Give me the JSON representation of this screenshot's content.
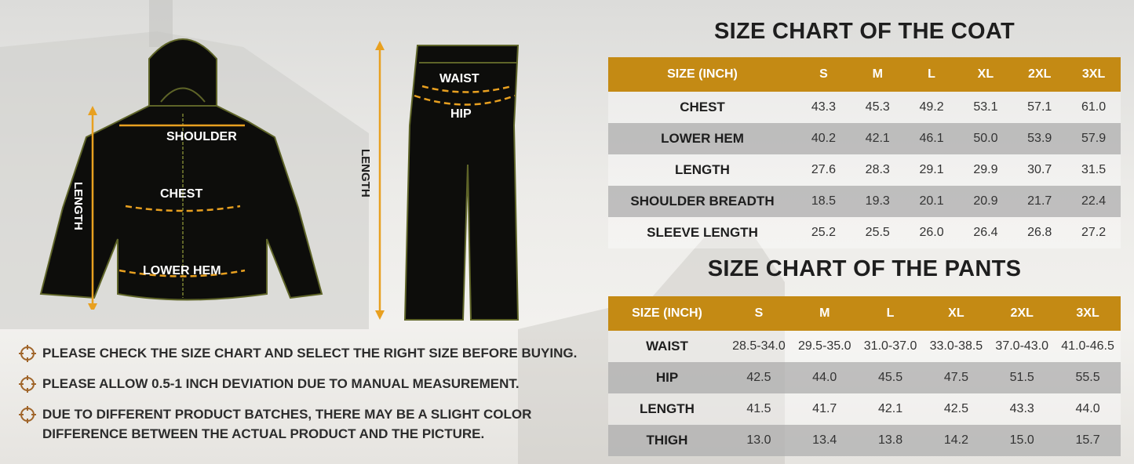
{
  "coat_chart": {
    "title": "SIZE CHART OF THE COAT",
    "header": [
      "SIZE (INCH)",
      "S",
      "M",
      "L",
      "XL",
      "2XL",
      "3XL"
    ],
    "rows": [
      {
        "label": "CHEST",
        "values": [
          "43.3",
          "45.3",
          "49.2",
          "53.1",
          "57.1",
          "61.0"
        ]
      },
      {
        "label": "LOWER HEM",
        "values": [
          "40.2",
          "42.1",
          "46.1",
          "50.0",
          "53.9",
          "57.9"
        ]
      },
      {
        "label": "LENGTH",
        "values": [
          "27.6",
          "28.3",
          "29.1",
          "29.9",
          "30.7",
          "31.5"
        ]
      },
      {
        "label": "SHOULDER BREADTH",
        "values": [
          "18.5",
          "19.3",
          "20.1",
          "20.9",
          "21.7",
          "22.4"
        ]
      },
      {
        "label": "SLEEVE LENGTH",
        "values": [
          "25.2",
          "25.5",
          "26.0",
          "26.4",
          "26.8",
          "27.2"
        ]
      }
    ]
  },
  "pants_chart": {
    "title": "SIZE CHART OF THE PANTS",
    "header": [
      "SIZE (INCH)",
      "S",
      "M",
      "L",
      "XL",
      "2XL",
      "3XL"
    ],
    "rows": [
      {
        "label": "WAIST",
        "values": [
          "28.5-34.0",
          "29.5-35.0",
          "31.0-37.0",
          "33.0-38.5",
          "37.0-43.0",
          "41.0-46.5"
        ]
      },
      {
        "label": "HIP",
        "values": [
          "42.5",
          "44.0",
          "45.5",
          "47.5",
          "51.5",
          "55.5"
        ]
      },
      {
        "label": "LENGTH",
        "values": [
          "41.5",
          "41.7",
          "42.1",
          "42.5",
          "43.3",
          "44.0"
        ]
      },
      {
        "label": "THIGH",
        "values": [
          "13.0",
          "13.4",
          "13.8",
          "14.2",
          "15.0",
          "15.7"
        ]
      }
    ]
  },
  "coat_labels": {
    "shoulder": "SHOULDER",
    "chest": "CHEST",
    "lower_hem": "LOWER HEM",
    "length": "LENGTH"
  },
  "pants_labels": {
    "waist": "WAIST",
    "hip": "HIP",
    "length": "LENGTH"
  },
  "notes": [
    "PLEASE CHECK THE SIZE CHART AND SELECT THE RIGHT SIZE BEFORE BUYING.",
    "PLEASE ALLOW 0.5-1 INCH DEVIATION DUE TO MANUAL MEASUREMENT.",
    "DUE TO DIFFERENT PRODUCT BATCHES, THERE MAY BE A SLIGHT COLOR DIFFERENCE BETWEEN THE ACTUAL PRODUCT AND THE PICTURE."
  ],
  "icons": {
    "note_bullet": "crosshair-icon"
  },
  "colors": {
    "accent": "#c48a14",
    "measure_line": "#e8a020",
    "garment": "#0d0d0b",
    "stitch": "#6b6b2a",
    "gray_row": "#b0b0b0"
  }
}
